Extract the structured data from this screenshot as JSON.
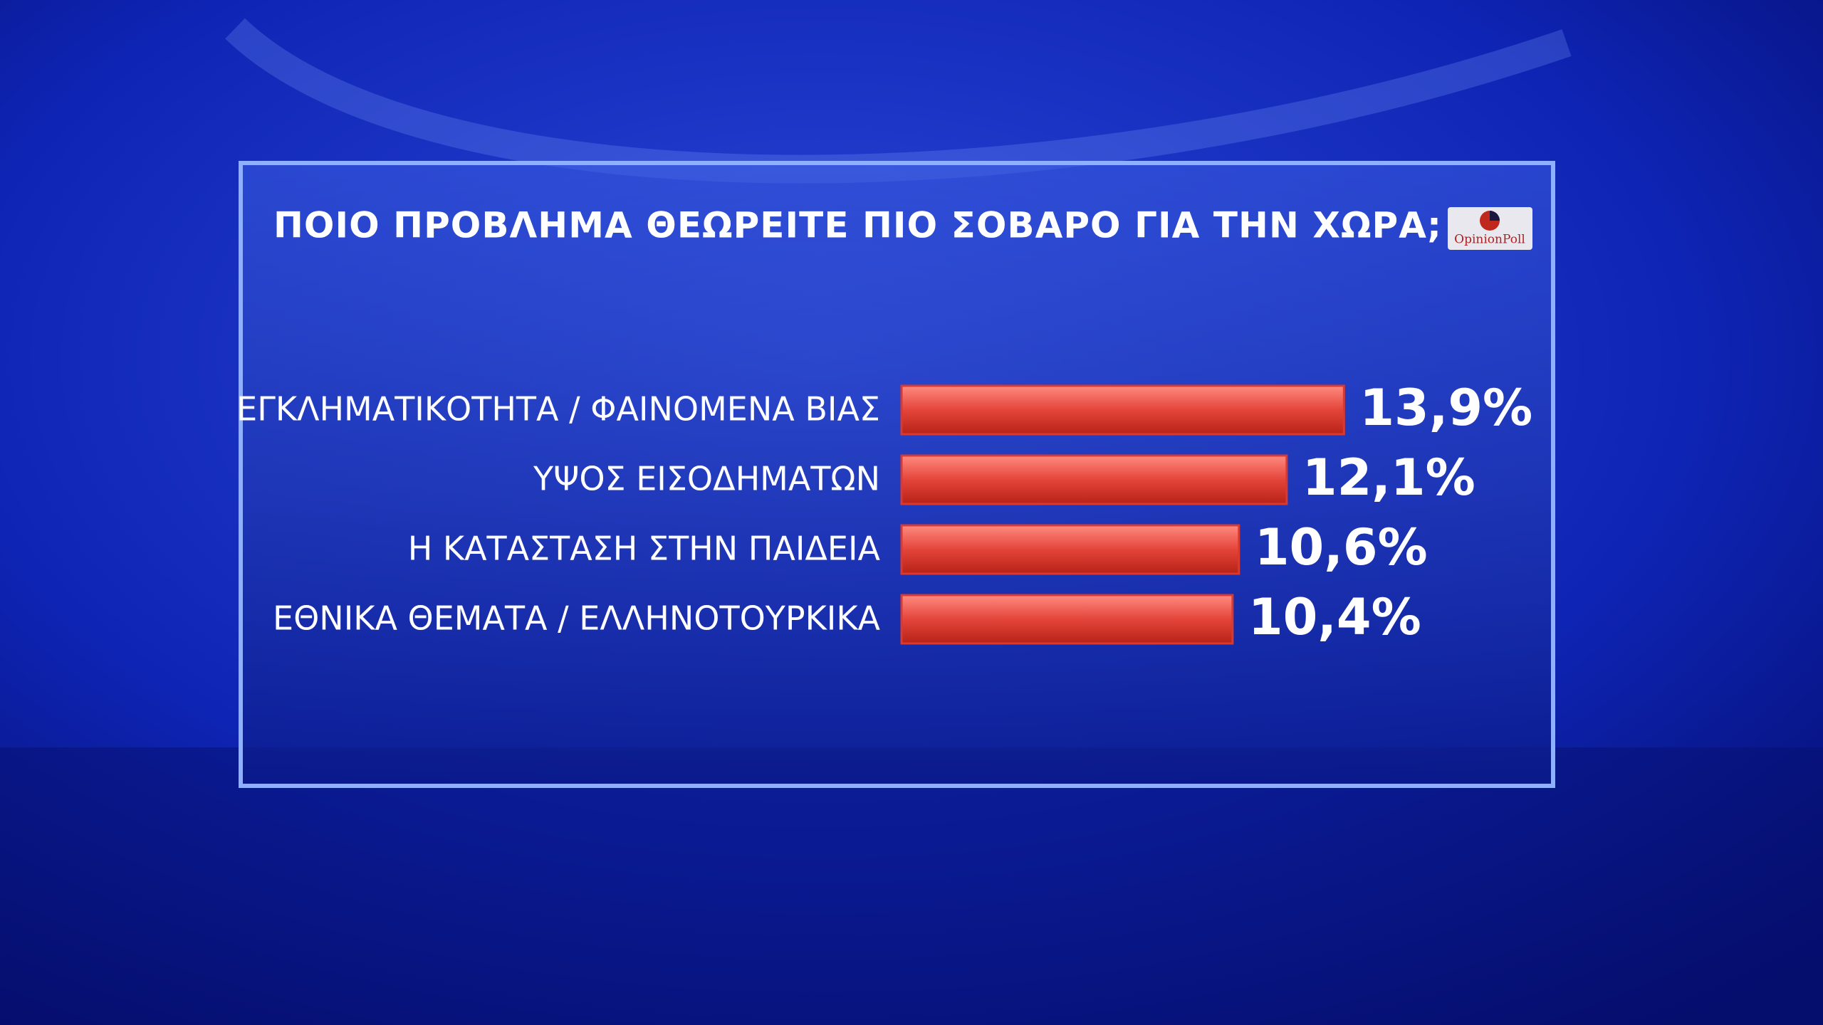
{
  "chart_data": {
    "type": "bar",
    "orientation": "horizontal",
    "title": "ΠΟΙΟ ΠΡΟΒΛΗΜΑ ΘΕΩΡΕΙΤΕ ΠΙΟ ΣΟΒΑΡΟ ΓΙΑ ΤΗΝ ΧΩΡΑ;",
    "logo": "OpinionPoll",
    "categories": [
      "ΕΓΚΛΗΜΑΤΙΚΟΤΗΤΑ / ΦΑΙΝΟΜΕΝΑ ΒΙΑΣ",
      "ΥΨΟΣ ΕΙΣΟΔΗΜΑΤΩΝ",
      "Η ΚΑΤΑΣΤΑΣΗ ΣΤΗΝ ΠΑΙΔΕΙΑ",
      "ΕΘΝΙΚΑ ΘΕΜΑΤΑ / ΕΛΛΗΝΟΤΟΥΡΚΙΚΑ"
    ],
    "values": [
      13.9,
      12.1,
      10.6,
      10.4
    ],
    "value_labels": [
      "13,9%",
      "12,1%",
      "10,6%",
      "10,4%"
    ],
    "color": "#d9392e"
  }
}
